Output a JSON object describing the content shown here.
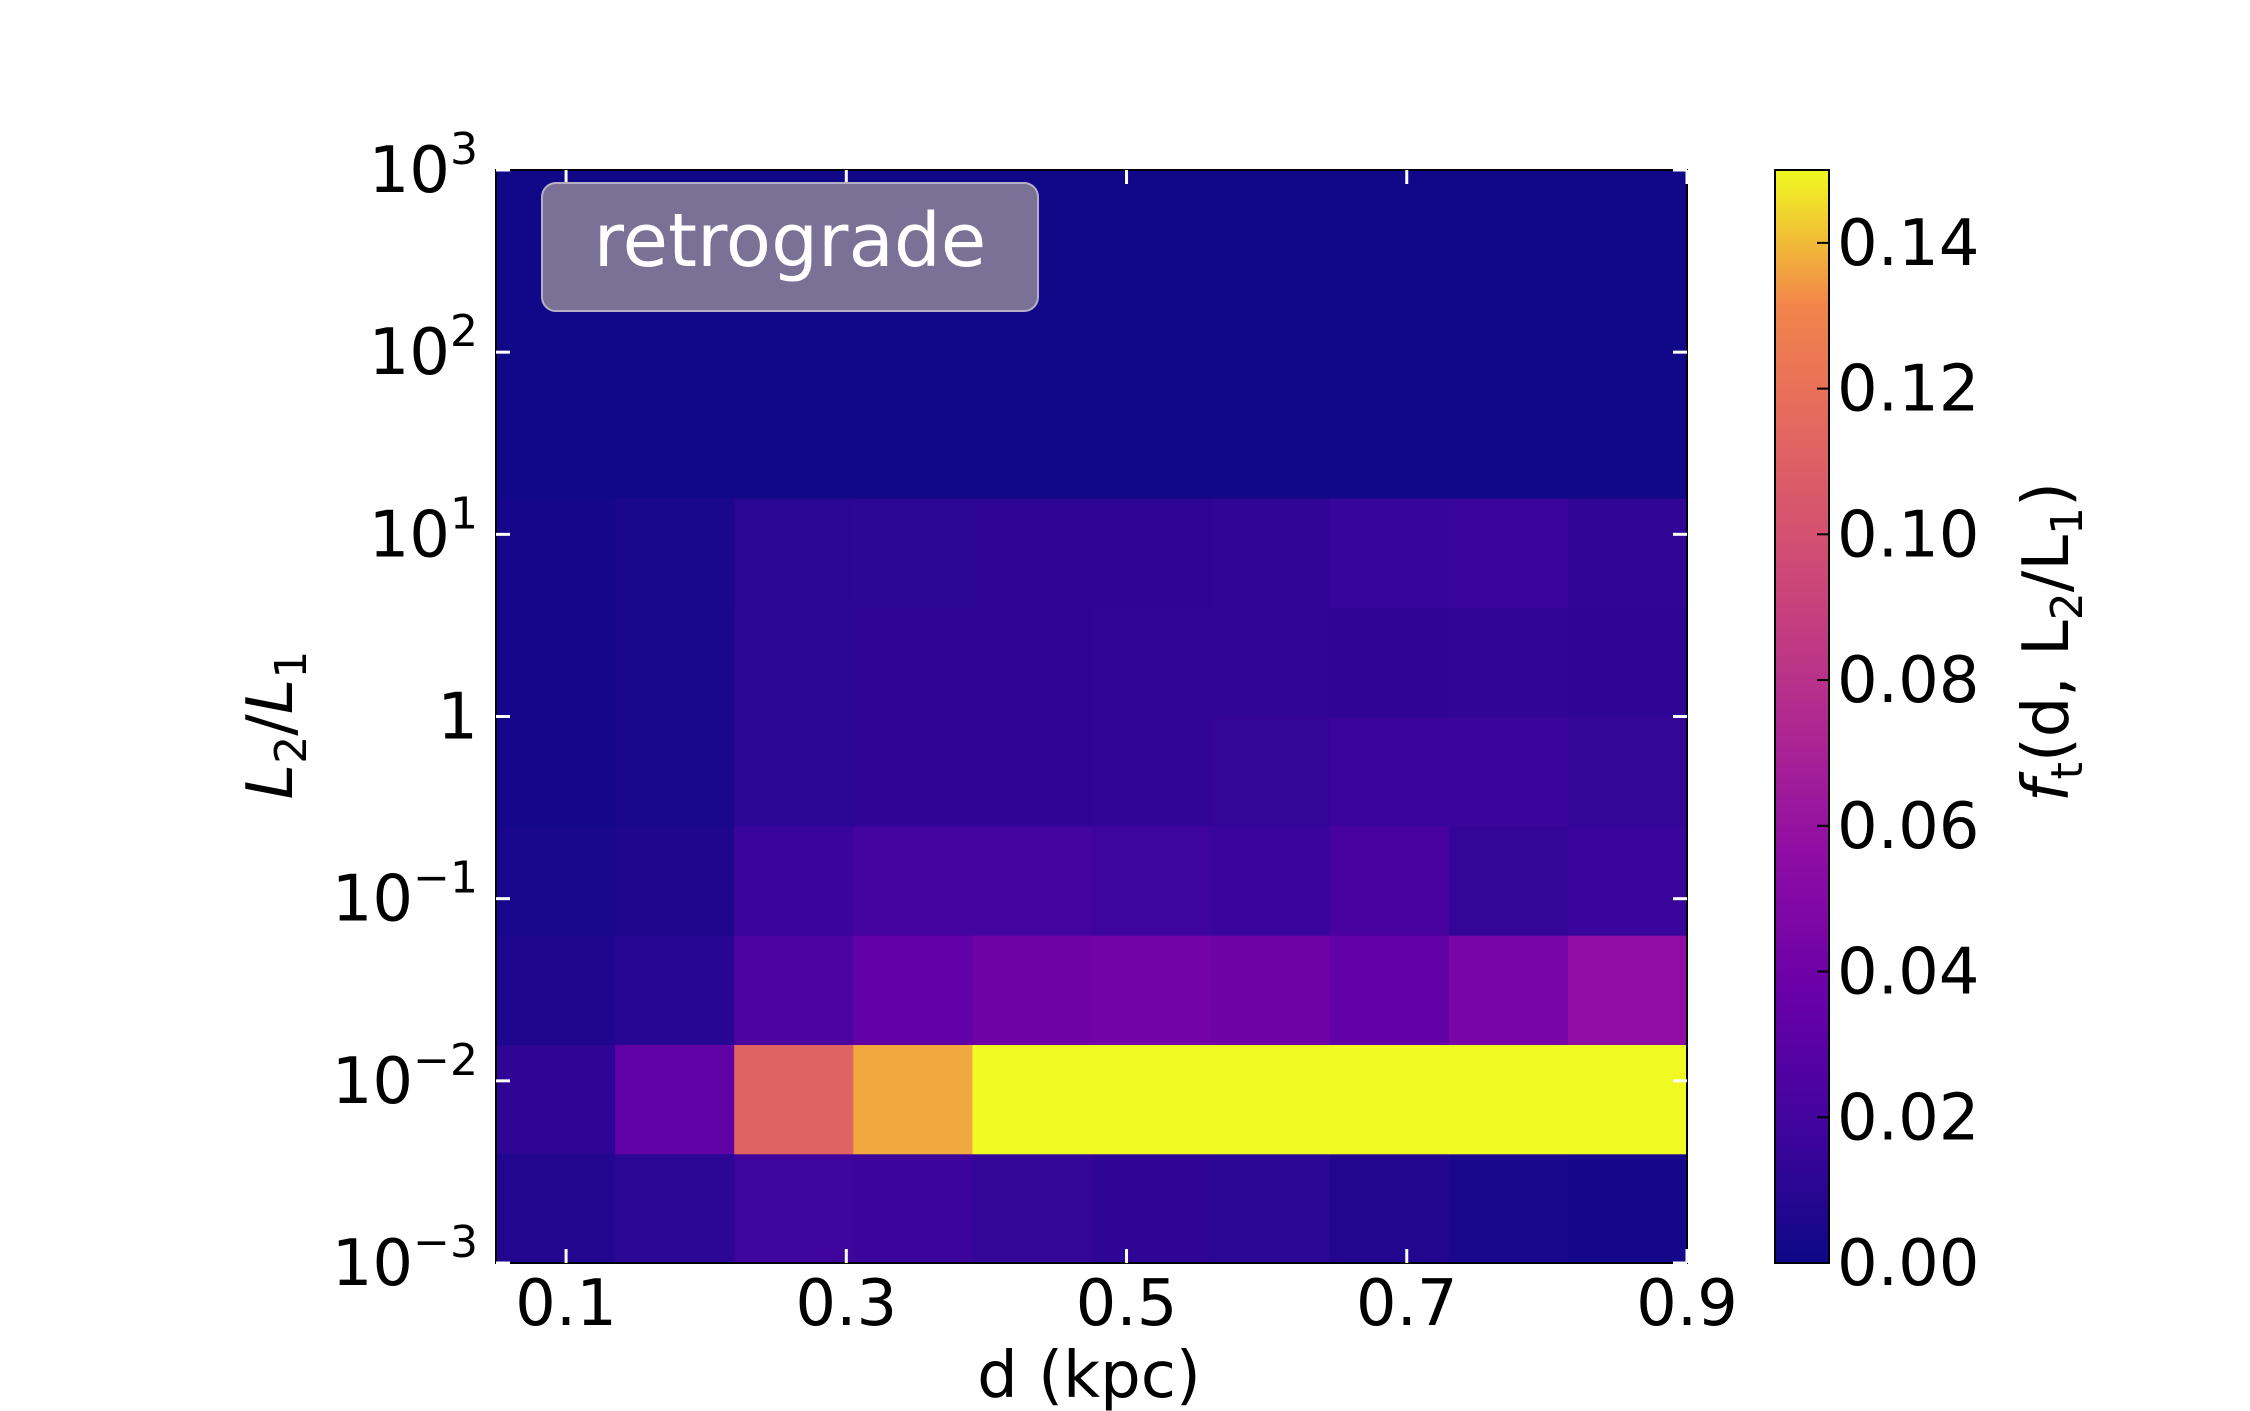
{
  "chart_data": {
    "type": "heatmap",
    "title": "",
    "annotation": "retrograde",
    "xlabel": "d (kpc)",
    "ylabel": {
      "base1": "L",
      "sub1": "2",
      "slash": "/",
      "base2": "L",
      "sub2": "1"
    },
    "xlim": [
      0.05,
      0.9
    ],
    "x_bin_edges": [
      0.05,
      0.135,
      0.22,
      0.305,
      0.39,
      0.475,
      0.56,
      0.645,
      0.73,
      0.815,
      0.9
    ],
    "x_ticks": [
      {
        "value": 0.1,
        "label": "0.1"
      },
      {
        "value": 0.3,
        "label": "0.3"
      },
      {
        "value": 0.5,
        "label": "0.5"
      },
      {
        "value": 0.7,
        "label": "0.7"
      },
      {
        "value": 0.9,
        "label": "0.9"
      }
    ],
    "ylim_log10": [
      -3,
      3
    ],
    "y_bin_edges_log10": [
      -3,
      -2.4,
      -1.8,
      -1.2,
      -0.6,
      0,
      0.6,
      1.2,
      3
    ],
    "y_ticks": [
      {
        "log10": -3,
        "base": "10",
        "exp": "−3"
      },
      {
        "log10": -2,
        "base": "10",
        "exp": "−2"
      },
      {
        "log10": -1,
        "base": "10",
        "exp": "−1"
      },
      {
        "log10": 0,
        "base": "1",
        "exp": ""
      },
      {
        "log10": 1,
        "base": "10",
        "exp": "1"
      },
      {
        "log10": 2,
        "base": "10",
        "exp": "2"
      },
      {
        "log10": 3,
        "base": "10",
        "exp": "3"
      }
    ],
    "values": [
      [
        0.008,
        0.011,
        0.018,
        0.017,
        0.014,
        0.012,
        0.011,
        0.008,
        0.005,
        0.003
      ],
      [
        0.012,
        0.033,
        0.112,
        0.137,
        0.15,
        0.15,
        0.15,
        0.15,
        0.15,
        0.15
      ],
      [
        0.006,
        0.009,
        0.024,
        0.034,
        0.04,
        0.042,
        0.04,
        0.034,
        0.044,
        0.056
      ],
      [
        0.004,
        0.006,
        0.016,
        0.021,
        0.02,
        0.018,
        0.016,
        0.022,
        0.014,
        0.016
      ],
      [
        0.003,
        0.005,
        0.011,
        0.012,
        0.012,
        0.013,
        0.014,
        0.016,
        0.016,
        0.014
      ],
      [
        0.003,
        0.005,
        0.011,
        0.012,
        0.012,
        0.013,
        0.013,
        0.012,
        0.013,
        0.012
      ],
      [
        0.003,
        0.005,
        0.01,
        0.011,
        0.012,
        0.012,
        0.013,
        0.015,
        0.016,
        0.013
      ],
      [
        0.001,
        0.001,
        0.001,
        0.001,
        0.001,
        0.001,
        0.001,
        0.001,
        0.001,
        0.001
      ]
    ],
    "colorbar": {
      "colormap": "plasma",
      "vmin": 0.0,
      "vmax": 0.15,
      "ticks": [
        {
          "value": 0.0,
          "label": "0.00"
        },
        {
          "value": 0.02,
          "label": "0.02"
        },
        {
          "value": 0.04,
          "label": "0.04"
        },
        {
          "value": 0.06,
          "label": "0.06"
        },
        {
          "value": 0.08,
          "label": "0.08"
        },
        {
          "value": 0.1,
          "label": "0.10"
        },
        {
          "value": 0.12,
          "label": "0.12"
        },
        {
          "value": 0.14,
          "label": "0.14"
        }
      ],
      "label": {
        "f": "f",
        "fsub": "t",
        "mid": "(d, L",
        "sub2": "2",
        "slash": "/L",
        "sub1": "1",
        "close": ")"
      }
    }
  }
}
